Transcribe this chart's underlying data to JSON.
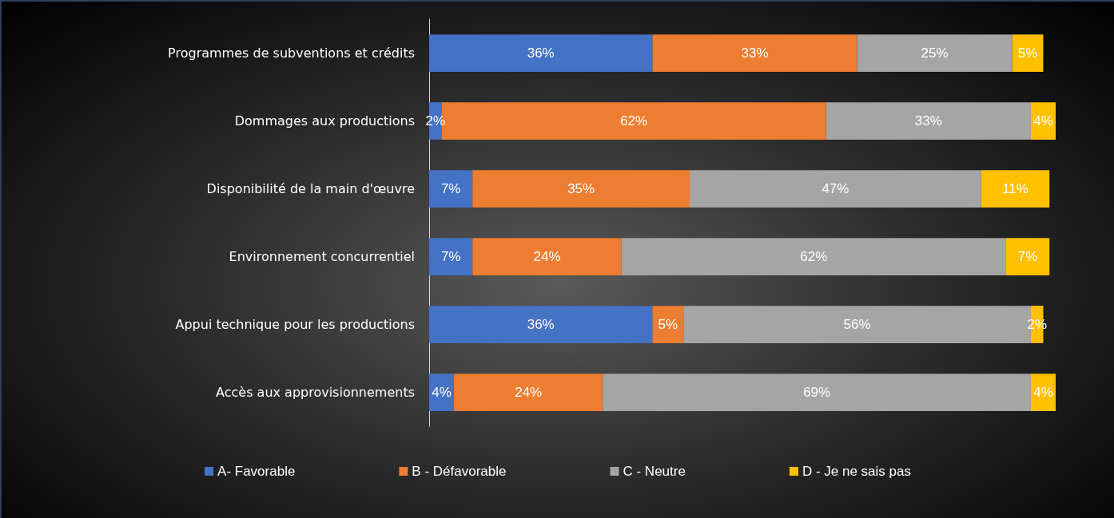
{
  "chart_data": {
    "type": "bar",
    "orientation": "horizontal",
    "stacked": true,
    "legend": "bottom",
    "grid": false,
    "tick_labels": "y",
    "categories": [
      "Programmes de subventions et crédits",
      "Dommages aux productions",
      "Disponibilité de la main d'œuvre",
      "Environnement concurrentiel",
      "Appui technique pour les productions",
      "Accès aux approvisionnements"
    ],
    "series": [
      {
        "name": "A- Favorable",
        "color": "#4472c4",
        "values": [
          36,
          2,
          7,
          7,
          36,
          4
        ],
        "value_labels": [
          "36%",
          "2%",
          "7%",
          "7%",
          "36%",
          "4%"
        ]
      },
      {
        "name": "B - Défavorable",
        "color": "#ed7d31",
        "values": [
          33,
          62,
          35,
          24,
          5,
          24
        ],
        "value_labels": [
          "33%",
          "62%",
          "35%",
          "24%",
          "5%",
          "24%"
        ]
      },
      {
        "name": "C - Neutre",
        "color": "#a5a5a5",
        "values": [
          25,
          33,
          47,
          62,
          56,
          69
        ],
        "value_labels": [
          "25%",
          "33%",
          "47%",
          "62%",
          "56%",
          "69%"
        ]
      },
      {
        "name": "D - Je ne sais pas",
        "color": "#ffc000",
        "values": [
          5,
          4,
          11,
          7,
          2,
          4
        ],
        "value_labels": [
          "5%",
          "4%",
          "11%",
          "7%",
          "2%",
          "4%"
        ]
      }
    ]
  }
}
